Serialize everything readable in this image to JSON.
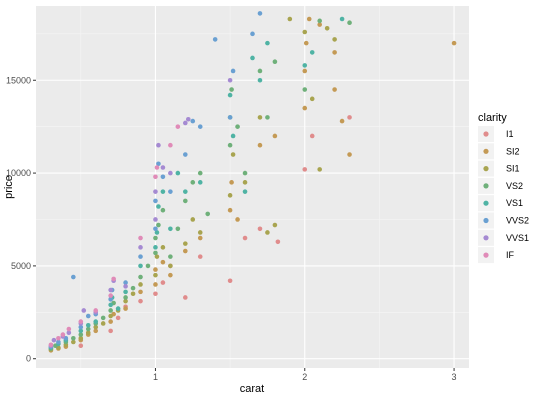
{
  "chart_data": {
    "type": "scatter",
    "xlabel": "carat",
    "ylabel": "price",
    "xlim": [
      0.2,
      3.1
    ],
    "ylim": [
      -500,
      19000
    ],
    "x_ticks": [
      1,
      2,
      3
    ],
    "y_ticks": [
      0,
      5000,
      10000,
      15000
    ],
    "grid": true,
    "legend": {
      "title": "clarity",
      "position": "right",
      "entries": [
        "I1",
        "SI2",
        "SI1",
        "VS2",
        "VS1",
        "VVS2",
        "VVS1",
        "IF"
      ]
    },
    "colors": {
      "I1": "#e08c8c",
      "SI2": "#c49a55",
      "SI1": "#a8a450",
      "VS2": "#6fb07a",
      "VS1": "#4fb3a4",
      "VVS2": "#6aa0d2",
      "VVS1": "#a58ad2",
      "IF": "#e08bb8"
    },
    "series": [
      {
        "name": "I1",
        "points": [
          [
            0.5,
            700
          ],
          [
            0.7,
            1500
          ],
          [
            0.75,
            2200
          ],
          [
            0.8,
            2800
          ],
          [
            0.9,
            3100
          ],
          [
            1.0,
            3500
          ],
          [
            1.05,
            4100
          ],
          [
            1.1,
            5000
          ],
          [
            1.2,
            3300
          ],
          [
            1.3,
            5500
          ],
          [
            1.5,
            4200
          ],
          [
            1.6,
            6500
          ],
          [
            1.7,
            7000
          ],
          [
            1.82,
            6300
          ],
          [
            2.0,
            10200
          ],
          [
            2.05,
            12000
          ],
          [
            2.3,
            13000
          ]
        ]
      },
      {
        "name": "SI2",
        "points": [
          [
            0.3,
            450
          ],
          [
            0.35,
            550
          ],
          [
            0.4,
            650
          ],
          [
            0.5,
            1000
          ],
          [
            0.55,
            1300
          ],
          [
            0.6,
            1500
          ],
          [
            0.7,
            2000
          ],
          [
            0.72,
            2400
          ],
          [
            0.8,
            2700
          ],
          [
            0.9,
            3600
          ],
          [
            1.0,
            4000
          ],
          [
            1.0,
            4800
          ],
          [
            1.05,
            5200
          ],
          [
            1.1,
            4500
          ],
          [
            1.2,
            5800
          ],
          [
            1.3,
            6500
          ],
          [
            1.5,
            8000
          ],
          [
            1.51,
            9500
          ],
          [
            1.55,
            7500
          ],
          [
            1.7,
            11500
          ],
          [
            1.8,
            12000
          ],
          [
            2.0,
            13500
          ],
          [
            2.0,
            15500
          ],
          [
            2.01,
            17000
          ],
          [
            2.03,
            18300
          ],
          [
            2.1,
            18000
          ],
          [
            2.2,
            16500
          ],
          [
            2.2,
            14500
          ],
          [
            2.25,
            12800
          ],
          [
            2.3,
            11000
          ],
          [
            3.0,
            17000
          ]
        ]
      },
      {
        "name": "SI1",
        "points": [
          [
            0.3,
            500
          ],
          [
            0.35,
            600
          ],
          [
            0.4,
            750
          ],
          [
            0.45,
            900
          ],
          [
            0.5,
            1100
          ],
          [
            0.55,
            1400
          ],
          [
            0.6,
            1700
          ],
          [
            0.65,
            1900
          ],
          [
            0.7,
            2300
          ],
          [
            0.75,
            2600
          ],
          [
            0.8,
            3100
          ],
          [
            0.85,
            3500
          ],
          [
            0.9,
            4000
          ],
          [
            1.0,
            4500
          ],
          [
            1.01,
            5500
          ],
          [
            1.05,
            6000
          ],
          [
            1.1,
            5000
          ],
          [
            1.2,
            6200
          ],
          [
            1.25,
            7500
          ],
          [
            1.3,
            6800
          ],
          [
            1.5,
            8800
          ],
          [
            1.52,
            11000
          ],
          [
            1.6,
            9500
          ],
          [
            1.7,
            13000
          ],
          [
            1.75,
            6800
          ],
          [
            1.8,
            7200
          ],
          [
            1.9,
            18300
          ],
          [
            2.0,
            17600
          ],
          [
            2.05,
            14000
          ],
          [
            2.1,
            10200
          ],
          [
            2.15,
            17800
          ],
          [
            2.2,
            17200
          ]
        ]
      },
      {
        "name": "VS2",
        "points": [
          [
            0.3,
            550
          ],
          [
            0.33,
            700
          ],
          [
            0.4,
            900
          ],
          [
            0.45,
            1100
          ],
          [
            0.5,
            1300
          ],
          [
            0.55,
            1600
          ],
          [
            0.6,
            1900
          ],
          [
            0.65,
            2200
          ],
          [
            0.7,
            2600
          ],
          [
            0.72,
            3000
          ],
          [
            0.8,
            3300
          ],
          [
            0.85,
            3800
          ],
          [
            0.9,
            4400
          ],
          [
            0.95,
            5000
          ],
          [
            1.0,
            5700
          ],
          [
            1.0,
            6500
          ],
          [
            1.02,
            7200
          ],
          [
            1.05,
            8000
          ],
          [
            1.1,
            5500
          ],
          [
            1.15,
            7000
          ],
          [
            1.2,
            8500
          ],
          [
            1.25,
            9500
          ],
          [
            1.3,
            10000
          ],
          [
            1.35,
            7800
          ],
          [
            1.5,
            11500
          ],
          [
            1.5,
            13000
          ],
          [
            1.51,
            14500
          ],
          [
            1.55,
            12500
          ],
          [
            1.6,
            10000
          ],
          [
            1.7,
            15500
          ],
          [
            1.75,
            13000
          ],
          [
            1.8,
            16000
          ],
          [
            2.0,
            14500
          ],
          [
            2.1,
            18200
          ],
          [
            2.3,
            18100
          ]
        ]
      },
      {
        "name": "VS1",
        "points": [
          [
            0.3,
            600
          ],
          [
            0.35,
            800
          ],
          [
            0.4,
            1000
          ],
          [
            0.5,
            1500
          ],
          [
            0.55,
            1800
          ],
          [
            0.6,
            2000
          ],
          [
            0.7,
            2900
          ],
          [
            0.71,
            3300
          ],
          [
            0.75,
            2700
          ],
          [
            0.8,
            3600
          ],
          [
            0.9,
            5000
          ],
          [
            1.0,
            6000
          ],
          [
            1.01,
            6800
          ],
          [
            1.02,
            8200
          ],
          [
            1.05,
            9000
          ],
          [
            1.1,
            7000
          ],
          [
            1.15,
            10000
          ],
          [
            1.2,
            9000
          ],
          [
            1.3,
            9500
          ],
          [
            1.5,
            14200
          ],
          [
            1.52,
            12000
          ],
          [
            1.6,
            9000
          ],
          [
            1.65,
            16200
          ],
          [
            1.7,
            15000
          ],
          [
            1.75,
            17000
          ],
          [
            2.0,
            15800
          ],
          [
            2.05,
            16500
          ],
          [
            2.25,
            18300
          ]
        ]
      },
      {
        "name": "VVS2",
        "points": [
          [
            0.3,
            650
          ],
          [
            0.35,
            900
          ],
          [
            0.4,
            1100
          ],
          [
            0.45,
            4400
          ],
          [
            0.5,
            1700
          ],
          [
            0.55,
            2300
          ],
          [
            0.6,
            2400
          ],
          [
            0.7,
            3200
          ],
          [
            0.71,
            3700
          ],
          [
            0.8,
            4100
          ],
          [
            0.9,
            5500
          ],
          [
            1.0,
            7000
          ],
          [
            1.0,
            8500
          ],
          [
            1.02,
            10500
          ],
          [
            1.05,
            9800
          ],
          [
            1.1,
            9000
          ],
          [
            1.2,
            11000
          ],
          [
            1.25,
            12800
          ],
          [
            1.3,
            12500
          ],
          [
            1.4,
            17200
          ],
          [
            1.5,
            13000
          ],
          [
            1.52,
            15500
          ],
          [
            1.65,
            17500
          ],
          [
            1.7,
            18600
          ]
        ]
      },
      {
        "name": "VVS1",
        "points": [
          [
            0.3,
            700
          ],
          [
            0.32,
            1000
          ],
          [
            0.38,
            1200
          ],
          [
            0.42,
            1400
          ],
          [
            0.5,
            1900
          ],
          [
            0.52,
            2600
          ],
          [
            0.6,
            2500
          ],
          [
            0.7,
            3700
          ],
          [
            0.72,
            4200
          ],
          [
            0.8,
            3900
          ],
          [
            0.9,
            6000
          ],
          [
            1.0,
            7500
          ],
          [
            1.0,
            9000
          ],
          [
            1.02,
            11500
          ],
          [
            1.05,
            10300
          ],
          [
            1.1,
            10000
          ],
          [
            1.2,
            12700
          ],
          [
            1.22,
            12900
          ],
          [
            1.5,
            15000
          ]
        ]
      },
      {
        "name": "IF",
        "points": [
          [
            0.3,
            750
          ],
          [
            0.35,
            1100
          ],
          [
            0.38,
            1300
          ],
          [
            0.42,
            1600
          ],
          [
            0.5,
            2000
          ],
          [
            0.6,
            2600
          ],
          [
            0.7,
            3400
          ],
          [
            0.72,
            4300
          ],
          [
            0.9,
            6500
          ],
          [
            1.0,
            9800
          ],
          [
            1.01,
            10300
          ],
          [
            1.1,
            11500
          ],
          [
            1.15,
            12500
          ]
        ]
      }
    ]
  }
}
